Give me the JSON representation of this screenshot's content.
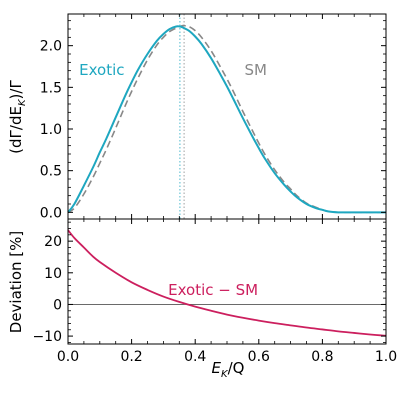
{
  "chart_data": [
    {
      "type": "line",
      "ylabel": "(dΓ/dE_K)/Γ",
      "ylabel_main": "(dΓ/dE",
      "ylabel_sub": "K",
      "ylabel_tail": ")/Γ",
      "xlim": [
        0,
        1
      ],
      "ylim": [
        -0.08,
        2.38
      ],
      "yticks": [
        0.0,
        0.5,
        1.0,
        1.5,
        2.0
      ],
      "ytick_labels": [
        "0.0",
        "0.5",
        "1.0",
        "1.5",
        "2.0"
      ],
      "series": [
        {
          "name": "Exotic",
          "color": "#1ea7c0",
          "dash": "solid",
          "x": [
            0,
            0.02,
            0.05,
            0.08,
            0.1,
            0.12,
            0.15,
            0.18,
            0.2,
            0.22,
            0.25,
            0.28,
            0.3,
            0.32,
            0.34,
            0.352,
            0.36,
            0.38,
            0.4,
            0.42,
            0.45,
            0.48,
            0.5,
            0.52,
            0.55,
            0.58,
            0.6,
            0.62,
            0.65,
            0.68,
            0.7,
            0.72,
            0.75,
            0.78,
            0.8,
            0.82,
            0.85,
            0.88,
            0.9,
            0.92,
            0.95,
            1.0
          ],
          "y": [
            0.0,
            0.1,
            0.32,
            0.55,
            0.72,
            0.88,
            1.14,
            1.4,
            1.56,
            1.71,
            1.9,
            2.06,
            2.14,
            2.2,
            2.23,
            2.23,
            2.22,
            2.18,
            2.11,
            2.02,
            1.85,
            1.65,
            1.51,
            1.36,
            1.13,
            0.91,
            0.77,
            0.64,
            0.47,
            0.33,
            0.25,
            0.18,
            0.1,
            0.05,
            0.03,
            0.01,
            0.0,
            0.0,
            0.0,
            0.0,
            0.0,
            0.0
          ]
        },
        {
          "name": "SM",
          "color": "#888888",
          "dash": "dashed",
          "x": [
            0,
            0.02,
            0.05,
            0.08,
            0.1,
            0.12,
            0.15,
            0.18,
            0.2,
            0.22,
            0.25,
            0.28,
            0.3,
            0.32,
            0.34,
            0.36,
            0.365,
            0.38,
            0.4,
            0.42,
            0.45,
            0.48,
            0.5,
            0.52,
            0.55,
            0.58,
            0.6,
            0.62,
            0.65,
            0.68,
            0.7,
            0.72,
            0.75,
            0.78,
            0.8,
            0.82,
            0.85,
            0.88,
            0.9,
            0.92,
            0.95,
            1.0
          ],
          "y": [
            0.0,
            0.05,
            0.22,
            0.43,
            0.59,
            0.75,
            1.01,
            1.28,
            1.45,
            1.61,
            1.83,
            2.01,
            2.1,
            2.17,
            2.21,
            2.24,
            2.24,
            2.23,
            2.18,
            2.1,
            1.94,
            1.74,
            1.6,
            1.45,
            1.21,
            0.98,
            0.83,
            0.69,
            0.51,
            0.36,
            0.28,
            0.2,
            0.11,
            0.06,
            0.03,
            0.01,
            0.0,
            0.0,
            0.0,
            0.0,
            0.0,
            0.0
          ]
        }
      ],
      "peak_lines": [
        {
          "x": 0.352,
          "color": "#1ea7c0"
        },
        {
          "x": 0.365,
          "color": "#888888"
        }
      ],
      "annotations": [
        {
          "text": "Exotic",
          "x": 0.035,
          "y": 1.71,
          "color": "#1ea7c0"
        },
        {
          "text": "SM",
          "x": 0.555,
          "y": 1.71,
          "color": "#888888"
        }
      ]
    },
    {
      "type": "line",
      "ylabel": "Deviation [%]",
      "xlabel": "E_K/Q",
      "xlabel_main": "E",
      "xlabel_sub": "K",
      "xlabel_tail": "/Q",
      "xlim": [
        0,
        1
      ],
      "ylim": [
        -12.5,
        27
      ],
      "yticks": [
        -10,
        0,
        10,
        20
      ],
      "ytick_labels": [
        "−10",
        "0",
        "10",
        "20"
      ],
      "xticks": [
        0.0,
        0.2,
        0.4,
        0.6,
        0.8,
        1.0
      ],
      "xtick_labels": [
        "0.0",
        "0.2",
        "0.4",
        "0.6",
        "0.8",
        "1.0"
      ],
      "reference_line": 0,
      "series": [
        {
          "name": "Exotic − SM",
          "color": "#cc1f5e",
          "x": [
            0,
            0.02,
            0.05,
            0.08,
            0.1,
            0.15,
            0.2,
            0.25,
            0.3,
            0.35,
            0.4,
            0.45,
            0.5,
            0.55,
            0.6,
            0.65,
            0.7,
            0.75,
            0.8,
            0.85,
            0.9,
            0.95,
            1.0
          ],
          "y": [
            23.5,
            21.0,
            18.0,
            15.0,
            13.4,
            10.0,
            7.0,
            4.6,
            2.5,
            0.8,
            -0.7,
            -2.0,
            -3.2,
            -4.2,
            -5.1,
            -5.9,
            -6.6,
            -7.3,
            -7.9,
            -8.5,
            -9.0,
            -9.5,
            -9.9
          ]
        }
      ],
      "annotations": [
        {
          "text": "Exotic − SM",
          "x": 0.315,
          "y": 4.5,
          "color": "#cc1f5e"
        }
      ]
    }
  ]
}
